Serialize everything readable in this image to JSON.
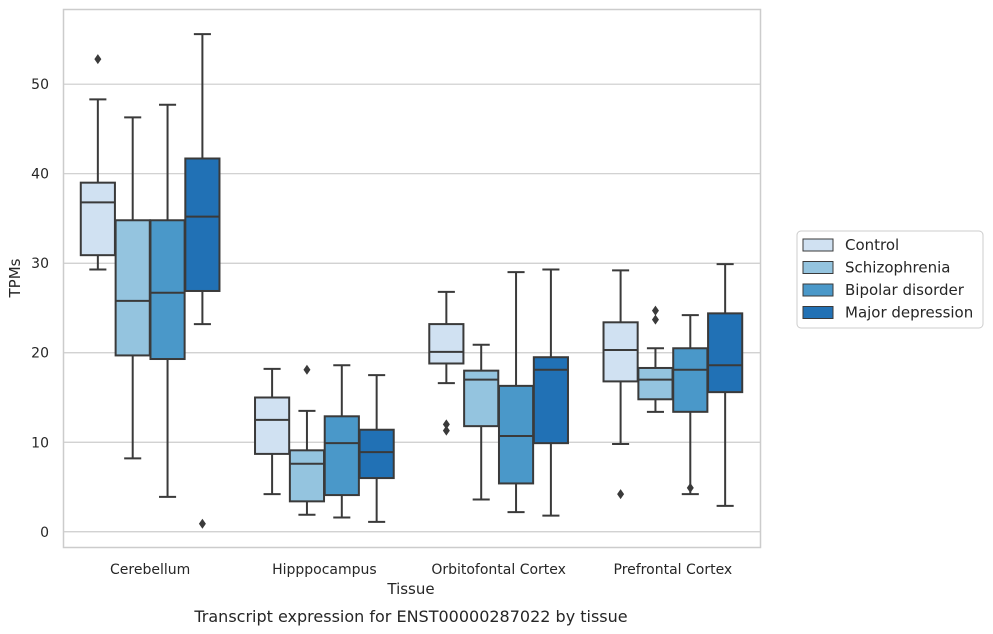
{
  "chart_data": {
    "type": "box",
    "title": "",
    "caption": "Transcript expression for ENST00000287022 by tissue",
    "xlabel": "Tissue",
    "ylabel": "TPMs",
    "ylim": [
      -1.7,
      58.4
    ],
    "yticks": [
      0,
      10,
      20,
      30,
      40,
      50
    ],
    "grid": "horizontal",
    "legend_position": "right",
    "categories": [
      "Cerebellum",
      "Hipppocampus",
      "Orbitofontal Cortex",
      "Prefrontal Cortex"
    ],
    "series": [
      {
        "name": "Control",
        "color": "#d0e1f2",
        "boxes": [
          {
            "whisker_low": 29.3,
            "q1": 30.9,
            "median": 36.8,
            "q3": 39.0,
            "whisker_high": 48.3,
            "outliers": [
              52.8
            ]
          },
          {
            "whisker_low": 4.2,
            "q1": 8.7,
            "median": 12.5,
            "q3": 15.0,
            "whisker_high": 18.2,
            "outliers": []
          },
          {
            "whisker_low": 16.6,
            "q1": 18.8,
            "median": 20.1,
            "q3": 23.2,
            "whisker_high": 26.8,
            "outliers": [
              11.3,
              12.0
            ]
          },
          {
            "whisker_low": 9.8,
            "q1": 16.8,
            "median": 20.3,
            "q3": 23.4,
            "whisker_high": 29.2,
            "outliers": [
              4.2
            ]
          }
        ]
      },
      {
        "name": "Schizophrenia",
        "color": "#94c4df",
        "boxes": [
          {
            "whisker_low": 8.2,
            "q1": 19.7,
            "median": 25.8,
            "q3": 34.8,
            "whisker_high": 46.3,
            "outliers": []
          },
          {
            "whisker_low": 1.9,
            "q1": 3.4,
            "median": 7.6,
            "q3": 9.1,
            "whisker_high": 13.5,
            "outliers": [
              18.1
            ]
          },
          {
            "whisker_low": 3.6,
            "q1": 11.8,
            "median": 17.0,
            "q3": 18.0,
            "whisker_high": 20.9,
            "outliers": []
          },
          {
            "whisker_low": 13.4,
            "q1": 14.8,
            "median": 17.0,
            "q3": 18.3,
            "whisker_high": 20.5,
            "outliers": [
              23.7,
              24.7
            ]
          }
        ]
      },
      {
        "name": "Bipolar disorder",
        "color": "#4a98c9",
        "boxes": [
          {
            "whisker_low": 3.9,
            "q1": 19.3,
            "median": 26.7,
            "q3": 34.8,
            "whisker_high": 47.7,
            "outliers": []
          },
          {
            "whisker_low": 1.6,
            "q1": 4.1,
            "median": 9.9,
            "q3": 12.9,
            "whisker_high": 18.6,
            "outliers": []
          },
          {
            "whisker_low": 2.2,
            "q1": 5.4,
            "median": 10.7,
            "q3": 16.3,
            "whisker_high": 29.0,
            "outliers": []
          },
          {
            "whisker_low": 4.2,
            "q1": 13.4,
            "median": 18.1,
            "q3": 20.5,
            "whisker_high": 24.2,
            "outliers": [
              4.9
            ]
          }
        ]
      },
      {
        "name": "Major depression",
        "color": "#2171b5",
        "boxes": [
          {
            "whisker_low": 23.2,
            "q1": 26.9,
            "median": 35.2,
            "q3": 41.7,
            "whisker_high": 55.6,
            "outliers": [
              0.9
            ]
          },
          {
            "whisker_low": 1.1,
            "q1": 6.0,
            "median": 8.9,
            "q3": 11.4,
            "whisker_high": 17.5,
            "outliers": []
          },
          {
            "whisker_low": 1.8,
            "q1": 9.9,
            "median": 18.1,
            "q3": 19.5,
            "whisker_high": 29.3,
            "outliers": []
          },
          {
            "whisker_low": 2.9,
            "q1": 15.6,
            "median": 18.6,
            "q3": 24.4,
            "whisker_high": 29.9,
            "outliers": []
          }
        ]
      }
    ]
  }
}
